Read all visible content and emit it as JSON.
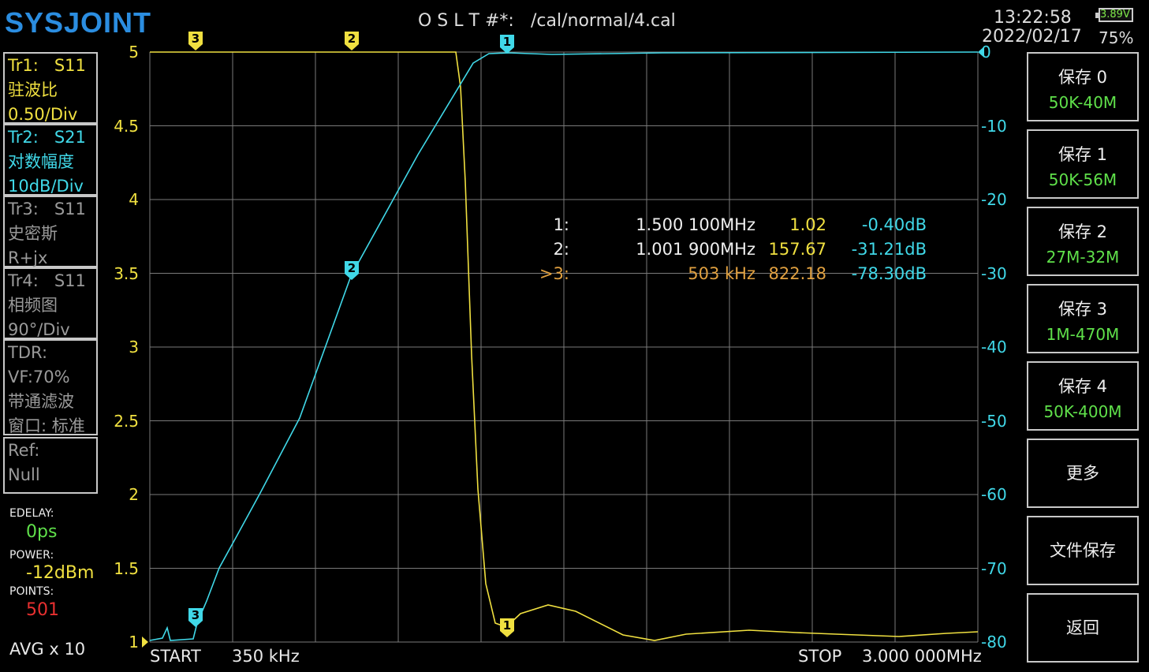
{
  "brand": "SYSJOINT",
  "header": {
    "cal_label": "O S L T #*:",
    "cal_file": "/cal/normal/4.cal",
    "time": "13:22:58",
    "date": "2022/02/17"
  },
  "battery": {
    "voltage": "3.89V",
    "percent": "75%"
  },
  "traces": [
    {
      "name": "Tr1:",
      "param": "S11",
      "format": "驻波比",
      "scale": "0.50/Div",
      "color": "#f0e040"
    },
    {
      "name": "Tr2:",
      "param": "S21",
      "format": "对数幅度",
      "scale": "10dB/Div",
      "color": "#40d8e8"
    },
    {
      "name": "Tr3:",
      "param": "S11",
      "format": "史密斯",
      "scale": "R+jx",
      "color": "#9a9a9a"
    },
    {
      "name": "Tr4:",
      "param": "S11",
      "format": "相频图",
      "scale": "90°/Div",
      "color": "#9a9a9a"
    }
  ],
  "tdr": {
    "title": "TDR:",
    "vf": "VF:70%",
    "mode": "带通滤波",
    "window": "窗口: 标准"
  },
  "ref": {
    "title": "Ref:",
    "value": "Null"
  },
  "settings": {
    "edelay_label": "EDELAY:",
    "edelay_value": "0ps",
    "power_label": "POWER:",
    "power_value": "-12dBm",
    "points_label": "POINTS:",
    "points_value": "501",
    "avg": "AVG x 10"
  },
  "axis_left": [
    "5",
    "4.5",
    "4",
    "3.5",
    "3",
    "2.5",
    "2",
    "1.5",
    "1"
  ],
  "axis_right": [
    "0",
    "-10",
    "-20",
    "-30",
    "-40",
    "-50",
    "-60",
    "-70",
    "-80"
  ],
  "footer": {
    "start_label": "START",
    "start_value": "350 kHz",
    "stop_label": "STOP",
    "stop_value": "3.000 000MHz"
  },
  "markers_table": [
    {
      "id": "1:",
      "freq": "1.500 100MHz",
      "v1": "1.02",
      "v2": "-0.40dB",
      "active": false
    },
    {
      "id": "2:",
      "freq": "1.001 900MHz",
      "v1": "157.67",
      "v2": "-31.21dB",
      "active": false
    },
    {
      "id": ">3:",
      "freq": "503 kHz",
      "v1": "822.18",
      "v2": "-78.30dB",
      "active": true
    }
  ],
  "markers": {
    "m1": "1",
    "m2": "2",
    "m3": "3"
  },
  "menu": [
    {
      "title": "保存 0",
      "sub": "50K-40M"
    },
    {
      "title": "保存 1",
      "sub": "50K-56M"
    },
    {
      "title": "保存 2",
      "sub": "27M-32M"
    },
    {
      "title": "保存 3",
      "sub": "1M-470M"
    },
    {
      "title": "保存 4",
      "sub": "50K-400M"
    },
    {
      "title": "更多",
      "sub": ""
    },
    {
      "title": "文件保存",
      "sub": ""
    },
    {
      "title": "返回",
      "sub": ""
    }
  ],
  "colors": {
    "tr1": "#f0e040",
    "tr2": "#40d8e8",
    "active_marker": "#e0a040",
    "sub_green": "#5fe04a",
    "points_red": "#e83030"
  }
}
